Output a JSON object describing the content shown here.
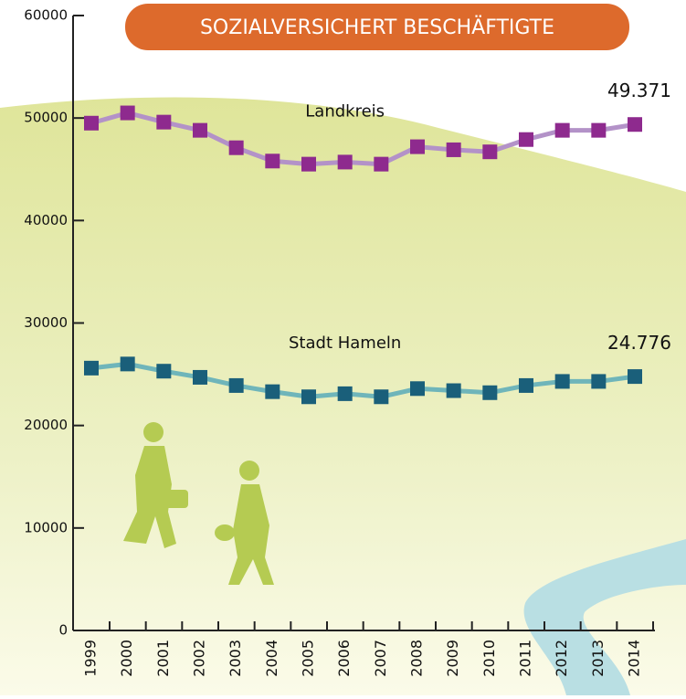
{
  "chart_data": {
    "type": "line",
    "title": "SOZIALVERSICHERT BESCHÄFTIGTE",
    "categories": [
      "1999",
      "2000",
      "2001",
      "2002",
      "2003",
      "2004",
      "2005",
      "2006",
      "2007",
      "2008",
      "2009",
      "2010",
      "2011",
      "2012",
      "2013",
      "2014"
    ],
    "series": [
      {
        "name": "Landkreis",
        "color": "#8e2a8e",
        "line_color": "#b392c8",
        "values": [
          49500,
          50500,
          49600,
          48800,
          47100,
          45800,
          45500,
          45700,
          45500,
          47200,
          46900,
          46700,
          47900,
          48800,
          48800,
          49371
        ],
        "value_labels": [
          null,
          null,
          null,
          null,
          null,
          null,
          null,
          null,
          null,
          null,
          null,
          null,
          null,
          null,
          null,
          "49.371"
        ]
      },
      {
        "name": "Stadt Hameln",
        "color": "#1a5f7a",
        "line_color": "#6fb5ba",
        "values": [
          25600,
          26000,
          25300,
          24700,
          23900,
          23300,
          22800,
          23100,
          22800,
          23600,
          23400,
          23200,
          23900,
          24300,
          24300,
          24776
        ],
        "value_labels": [
          null,
          null,
          null,
          null,
          null,
          null,
          null,
          null,
          null,
          null,
          null,
          null,
          null,
          null,
          null,
          "24.776"
        ]
      }
    ],
    "ylim": [
      0,
      60000
    ],
    "yticks": [
      0,
      10000,
      20000,
      30000,
      40000,
      50000,
      60000
    ],
    "grid": false
  }
}
